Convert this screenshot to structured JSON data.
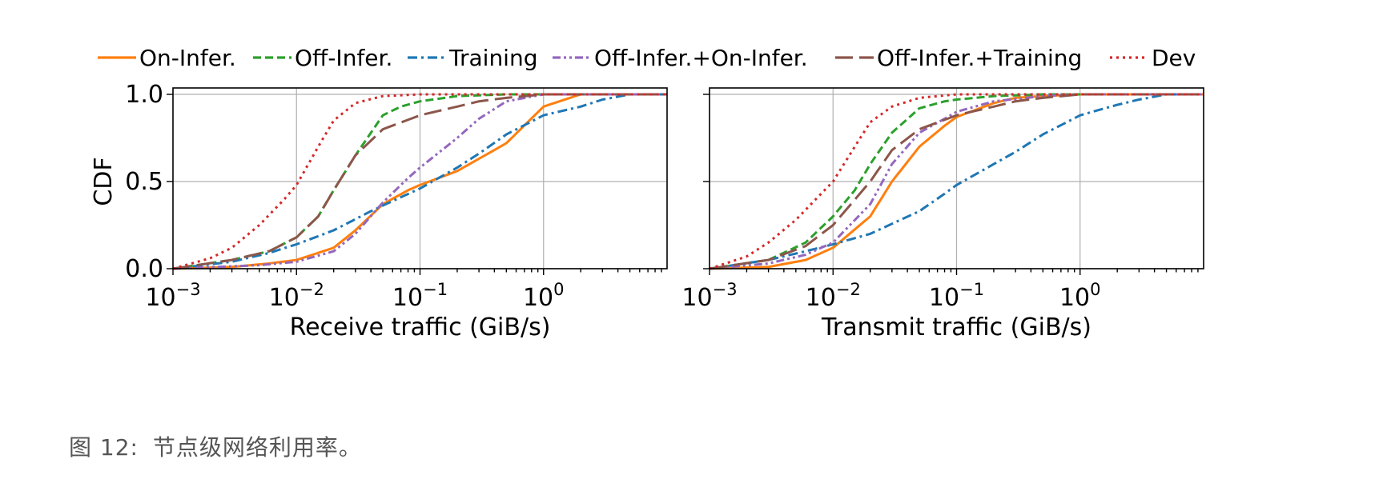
{
  "caption": {
    "label": "图 12:",
    "text": "节点级网络利用率。"
  },
  "legend": {
    "placement": "top-center",
    "items": [
      {
        "label": "On-Infer.",
        "color": "#ff7f0e",
        "dash": "solid"
      },
      {
        "label": "Off-Infer.",
        "color": "#2ca02c",
        "dash": "dashed"
      },
      {
        "label": "Training",
        "color": "#1f77b4",
        "dash": "dashdot"
      },
      {
        "label": "Off-Infer.+On-Infer.",
        "color": "#9467bd",
        "dash": "dashdotdot"
      },
      {
        "label": "Off-Infer.+Training",
        "color": "#8c564b",
        "dash": "longdash"
      },
      {
        "label": "Dev",
        "color": "#d62728",
        "dash": "dotted"
      }
    ]
  },
  "chart_data": [
    {
      "type": "line",
      "xlabel": "Receive traffic (GiB/s)",
      "ylabel": "CDF",
      "xscale": "log",
      "xlim": [
        0.001,
        10
      ],
      "ylim": [
        0,
        1
      ],
      "xticks": [
        {
          "base": "10",
          "exp": "−3"
        },
        {
          "base": "10",
          "exp": "−2"
        },
        {
          "base": "10",
          "exp": "−1"
        },
        {
          "base": "10",
          "exp": "0"
        }
      ],
      "yticks": [
        "0.0",
        "0.5",
        "1.0"
      ],
      "grid": true,
      "series": [
        {
          "name": "On-Infer.",
          "x": [
            0.001,
            0.003,
            0.006,
            0.01,
            0.02,
            0.03,
            0.05,
            0.08,
            0.1,
            0.2,
            0.5,
            1,
            2,
            5,
            10
          ],
          "y": [
            0,
            0.01,
            0.03,
            0.05,
            0.12,
            0.22,
            0.37,
            0.45,
            0.48,
            0.56,
            0.72,
            0.93,
            1.0,
            1.0,
            1.0
          ]
        },
        {
          "name": "Off-Infer.",
          "x": [
            0.001,
            0.003,
            0.006,
            0.01,
            0.015,
            0.02,
            0.03,
            0.05,
            0.07,
            0.1,
            0.2,
            0.5,
            1,
            10
          ],
          "y": [
            0,
            0.05,
            0.1,
            0.18,
            0.3,
            0.45,
            0.65,
            0.88,
            0.93,
            0.96,
            0.99,
            1.0,
            1.0,
            1.0
          ]
        },
        {
          "name": "Training",
          "x": [
            0.001,
            0.003,
            0.006,
            0.01,
            0.02,
            0.04,
            0.07,
            0.1,
            0.2,
            0.3,
            0.5,
            1,
            2,
            3,
            5,
            10
          ],
          "y": [
            0,
            0.04,
            0.09,
            0.14,
            0.22,
            0.33,
            0.41,
            0.46,
            0.58,
            0.66,
            0.77,
            0.88,
            0.93,
            0.97,
            1.0,
            1.0
          ]
        },
        {
          "name": "Off-Infer.+On-Infer.",
          "x": [
            0.001,
            0.005,
            0.01,
            0.02,
            0.03,
            0.05,
            0.08,
            0.1,
            0.2,
            0.3,
            0.5,
            1,
            10
          ],
          "y": [
            0,
            0.02,
            0.04,
            0.1,
            0.2,
            0.38,
            0.52,
            0.58,
            0.75,
            0.86,
            0.96,
            1.0,
            1.0
          ]
        },
        {
          "name": "Off-Infer.+Training",
          "x": [
            0.001,
            0.003,
            0.006,
            0.01,
            0.015,
            0.02,
            0.03,
            0.05,
            0.1,
            0.2,
            0.3,
            0.5,
            1,
            10
          ],
          "y": [
            0,
            0.05,
            0.1,
            0.18,
            0.3,
            0.45,
            0.65,
            0.8,
            0.88,
            0.93,
            0.96,
            0.98,
            1.0,
            1.0
          ]
        },
        {
          "name": "Dev",
          "x": [
            0.001,
            0.002,
            0.003,
            0.005,
            0.008,
            0.01,
            0.015,
            0.02,
            0.03,
            0.05,
            0.1,
            10
          ],
          "y": [
            0,
            0.06,
            0.12,
            0.25,
            0.4,
            0.48,
            0.7,
            0.85,
            0.95,
            0.99,
            1.0,
            1.0
          ]
        }
      ]
    },
    {
      "type": "line",
      "xlabel": "Transmit traffic (GiB/s)",
      "ylabel": "",
      "xscale": "log",
      "xlim": [
        0.001,
        10
      ],
      "ylim": [
        0,
        1
      ],
      "xticks": [
        {
          "base": "10",
          "exp": "−3"
        },
        {
          "base": "10",
          "exp": "−2"
        },
        {
          "base": "10",
          "exp": "−1"
        },
        {
          "base": "10",
          "exp": "0"
        }
      ],
      "yticks": [],
      "grid": true,
      "series": [
        {
          "name": "On-Infer.",
          "x": [
            0.001,
            0.003,
            0.006,
            0.01,
            0.02,
            0.03,
            0.05,
            0.08,
            0.1,
            0.2,
            0.3,
            0.5,
            1,
            10
          ],
          "y": [
            0,
            0.01,
            0.05,
            0.12,
            0.3,
            0.5,
            0.7,
            0.82,
            0.87,
            0.95,
            0.98,
            0.99,
            1.0,
            1.0
          ]
        },
        {
          "name": "Off-Infer.",
          "x": [
            0.001,
            0.003,
            0.006,
            0.01,
            0.015,
            0.02,
            0.03,
            0.05,
            0.08,
            0.1,
            0.2,
            0.5,
            1,
            10
          ],
          "y": [
            0,
            0.05,
            0.15,
            0.3,
            0.45,
            0.6,
            0.78,
            0.92,
            0.96,
            0.97,
            0.99,
            1.0,
            1.0,
            1.0
          ]
        },
        {
          "name": "Training",
          "x": [
            0.001,
            0.003,
            0.006,
            0.01,
            0.02,
            0.05,
            0.08,
            0.1,
            0.2,
            0.3,
            0.5,
            1,
            2,
            3,
            5,
            10
          ],
          "y": [
            0,
            0.05,
            0.1,
            0.14,
            0.2,
            0.33,
            0.43,
            0.48,
            0.6,
            0.67,
            0.77,
            0.88,
            0.94,
            0.97,
            1.0,
            1.0
          ]
        },
        {
          "name": "Off-Infer.+On-Infer.",
          "x": [
            0.001,
            0.003,
            0.006,
            0.01,
            0.02,
            0.03,
            0.05,
            0.08,
            0.1,
            0.2,
            0.5,
            1,
            10
          ],
          "y": [
            0,
            0.03,
            0.08,
            0.15,
            0.37,
            0.6,
            0.78,
            0.86,
            0.9,
            0.96,
            0.99,
            1.0,
            1.0
          ]
        },
        {
          "name": "Off-Infer.+Training",
          "x": [
            0.001,
            0.003,
            0.006,
            0.01,
            0.02,
            0.03,
            0.05,
            0.1,
            0.2,
            0.3,
            0.5,
            1,
            10
          ],
          "y": [
            0,
            0.05,
            0.13,
            0.25,
            0.5,
            0.68,
            0.8,
            0.88,
            0.93,
            0.96,
            0.98,
            1.0,
            1.0
          ]
        },
        {
          "name": "Dev",
          "x": [
            0.001,
            0.002,
            0.003,
            0.005,
            0.008,
            0.01,
            0.015,
            0.02,
            0.03,
            0.05,
            0.1,
            10
          ],
          "y": [
            0,
            0.07,
            0.15,
            0.28,
            0.43,
            0.5,
            0.7,
            0.84,
            0.93,
            0.98,
            1.0,
            1.0
          ]
        }
      ]
    }
  ]
}
